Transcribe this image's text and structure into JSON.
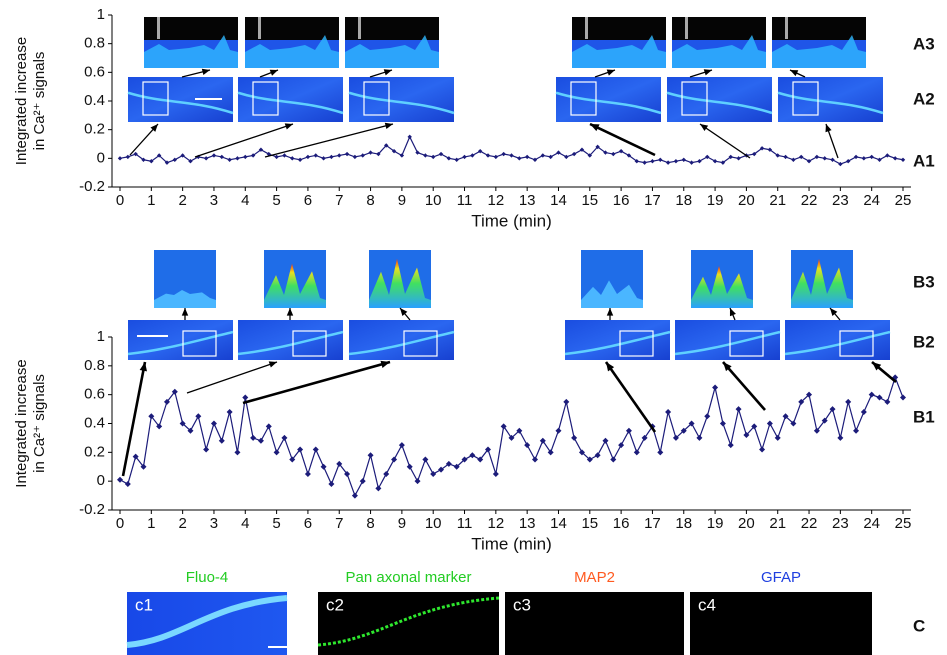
{
  "chart_data": [
    {
      "type": "line",
      "panel": "A1",
      "ylabel": [
        "Integrated increase",
        "in Ca²⁺ signals"
      ],
      "xlabel": "Time (min)",
      "ylim": [
        -0.2,
        1
      ],
      "yticks": [
        -0.2,
        0,
        0.2,
        0.4,
        0.6,
        0.8,
        1
      ],
      "xlim": [
        0,
        25
      ],
      "xticks": [
        0,
        1,
        2,
        3,
        4,
        5,
        6,
        7,
        8,
        9,
        10,
        11,
        12,
        13,
        14,
        15,
        16,
        17,
        18,
        19,
        20,
        21,
        22,
        23,
        24,
        25
      ],
      "x": [
        0,
        0.25,
        0.5,
        0.75,
        1,
        1.25,
        1.5,
        1.75,
        2,
        2.25,
        2.5,
        2.75,
        3,
        3.25,
        3.5,
        3.75,
        4,
        4.25,
        4.5,
        4.75,
        5,
        5.25,
        5.5,
        5.75,
        6,
        6.25,
        6.5,
        6.75,
        7,
        7.25,
        7.5,
        7.75,
        8,
        8.25,
        8.5,
        8.75,
        9,
        9.25,
        9.5,
        9.75,
        10,
        10.25,
        10.5,
        10.75,
        11,
        11.25,
        11.5,
        11.75,
        12,
        12.25,
        12.5,
        12.75,
        13,
        13.25,
        13.5,
        13.75,
        14,
        14.25,
        14.5,
        14.75,
        15,
        15.25,
        15.5,
        15.75,
        16,
        16.25,
        16.5,
        16.75,
        17,
        17.25,
        17.5,
        17.75,
        18,
        18.25,
        18.5,
        18.75,
        19,
        19.25,
        19.5,
        19.75,
        20,
        20.25,
        20.5,
        20.75,
        21,
        21.25,
        21.5,
        21.75,
        22,
        22.25,
        22.5,
        22.75,
        23,
        23.25,
        23.5,
        23.75,
        24,
        24.25,
        24.5,
        24.75,
        25
      ],
      "series": [
        {
          "color": "#1c1c7a",
          "values": [
            0,
            0.01,
            0.03,
            -0.01,
            -0.02,
            0.02,
            -0.03,
            -0.01,
            0.02,
            -0.02,
            0.01,
            0,
            0.02,
            0.01,
            -0.01,
            0,
            0.01,
            0.02,
            0.06,
            0.03,
            0.01,
            0.02,
            0,
            -0.01,
            0.01,
            0.02,
            0,
            0.01,
            0.02,
            0.03,
            0.01,
            0.02,
            0.04,
            0.03,
            0.09,
            0.05,
            0.02,
            0.15,
            0.04,
            0.02,
            0.01,
            0.03,
            0,
            -0.01,
            0.01,
            0.02,
            0.05,
            0.02,
            0.01,
            0.03,
            0.02,
            0,
            0.01,
            -0.01,
            0.02,
            0.01,
            0.04,
            0.01,
            0.03,
            0.06,
            0.02,
            0.08,
            0.04,
            0.03,
            0.05,
            0.02,
            -0.02,
            -0.03,
            -0.02,
            -0.01,
            -0.03,
            -0.02,
            -0.01,
            -0.03,
            -0.02,
            0.01,
            -0.02,
            -0.03,
            0.01,
            0,
            0.02,
            0.03,
            0.07,
            0.06,
            0.02,
            0.01,
            -0.01,
            0.01,
            -0.02,
            0.01,
            0,
            -0.01,
            -0.04,
            -0.02,
            0.01,
            0,
            0.01,
            -0.01,
            0.02,
            0,
            -0.01
          ]
        }
      ]
    },
    {
      "type": "line",
      "panel": "B1",
      "ylabel": [
        "Integrated increase",
        "in Ca²⁺ signals"
      ],
      "xlabel": "Time (min)",
      "ylim": [
        -0.2,
        1
      ],
      "yticks": [
        -0.2,
        0,
        0.2,
        0.4,
        0.6,
        0.8,
        1
      ],
      "xlim": [
        0,
        25
      ],
      "xticks": [
        0,
        1,
        2,
        3,
        4,
        5,
        6,
        7,
        8,
        9,
        10,
        11,
        12,
        13,
        14,
        15,
        16,
        17,
        18,
        19,
        20,
        21,
        22,
        23,
        24,
        25
      ],
      "x": [
        0,
        0.25,
        0.5,
        0.75,
        1,
        1.25,
        1.5,
        1.75,
        2,
        2.25,
        2.5,
        2.75,
        3,
        3.25,
        3.5,
        3.75,
        4,
        4.25,
        4.5,
        4.75,
        5,
        5.25,
        5.5,
        5.75,
        6,
        6.25,
        6.5,
        6.75,
        7,
        7.25,
        7.5,
        7.75,
        8,
        8.25,
        8.5,
        8.75,
        9,
        9.25,
        9.5,
        9.75,
        10,
        10.25,
        10.5,
        10.75,
        11,
        11.25,
        11.5,
        11.75,
        12,
        12.25,
        12.5,
        12.75,
        13,
        13.25,
        13.5,
        13.75,
        14,
        14.25,
        14.5,
        14.75,
        15,
        15.25,
        15.5,
        15.75,
        16,
        16.25,
        16.5,
        16.75,
        17,
        17.25,
        17.5,
        17.75,
        18,
        18.25,
        18.5,
        18.75,
        19,
        19.25,
        19.5,
        19.75,
        20,
        20.25,
        20.5,
        20.75,
        21,
        21.25,
        21.5,
        21.75,
        22,
        22.25,
        22.5,
        22.75,
        23,
        23.25,
        23.5,
        23.75,
        24,
        24.25,
        24.5,
        24.75,
        25
      ],
      "series": [
        {
          "color": "#1c1c7a",
          "values": [
            0.01,
            -0.02,
            0.17,
            0.1,
            0.45,
            0.38,
            0.55,
            0.62,
            0.4,
            0.35,
            0.45,
            0.22,
            0.4,
            0.28,
            0.48,
            0.2,
            0.58,
            0.3,
            0.28,
            0.38,
            0.2,
            0.3,
            0.15,
            0.22,
            0.05,
            0.22,
            0.1,
            -0.02,
            0.12,
            0.05,
            -0.1,
            0,
            0.18,
            -0.05,
            0.05,
            0.15,
            0.25,
            0.1,
            0,
            0.15,
            0.05,
            0.08,
            0.12,
            0.1,
            0.15,
            0.18,
            0.15,
            0.22,
            0.05,
            0.38,
            0.3,
            0.35,
            0.25,
            0.15,
            0.28,
            0.2,
            0.35,
            0.55,
            0.3,
            0.2,
            0.15,
            0.18,
            0.28,
            0.15,
            0.25,
            0.35,
            0.2,
            0.3,
            0.38,
            0.2,
            0.48,
            0.3,
            0.35,
            0.4,
            0.3,
            0.45,
            0.65,
            0.4,
            0.25,
            0.5,
            0.32,
            0.38,
            0.22,
            0.4,
            0.3,
            0.45,
            0.4,
            0.55,
            0.6,
            0.35,
            0.42,
            0.5,
            0.3,
            0.55,
            0.35,
            0.48,
            0.6,
            0.58,
            0.55,
            0.72,
            0.58
          ]
        }
      ]
    }
  ],
  "figure": {
    "row_labels": [
      "A3",
      "A2",
      "A1",
      "B3",
      "B2",
      "B1",
      "C"
    ],
    "stain_panels": [
      {
        "id": "c1",
        "stain": "Fluo-4"
      },
      {
        "id": "c2",
        "stain": "Pan axonal marker"
      },
      {
        "id": "c3",
        "stain": "MAP2"
      },
      {
        "id": "c4",
        "stain": "GFAP"
      }
    ]
  }
}
